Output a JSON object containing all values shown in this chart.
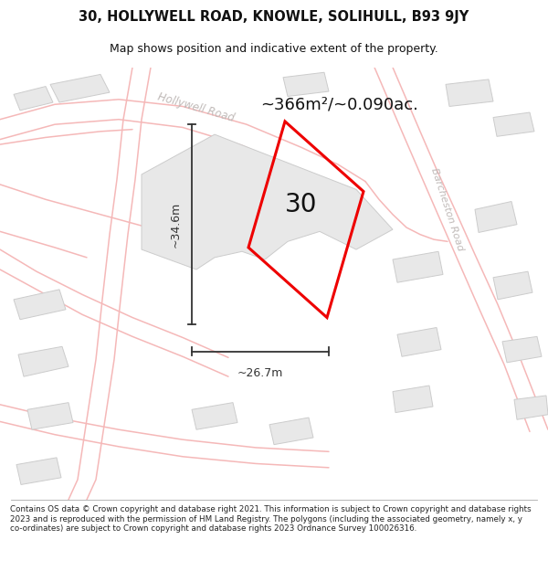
{
  "title": "30, HOLLYWELL ROAD, KNOWLE, SOLIHULL, B93 9JY",
  "subtitle": "Map shows position and indicative extent of the property.",
  "area_label": "~366m²/~0.090ac.",
  "label_30": "30",
  "dim_vertical": "~34.6m",
  "dim_horizontal": "~26.7m",
  "road_hollywell": "Hollywell Road",
  "road_barcheston": "Barcheston Road",
  "legal_text": "Contains OS data © Crown copyright and database right 2021. This information is subject to Crown copyright and database rights 2023 and is reproduced with the permission of HM Land Registry. The polygons (including the associated geometry, namely x, y co-ordinates) are subject to Crown copyright and database rights 2023 Ordnance Survey 100026316.",
  "map_bg": "#ffffff",
  "building_fill": "#e8e8e8",
  "building_edge": "#cccccc",
  "road_line_color": "#f5b8b8",
  "property_color": "#ee0000",
  "dim_color": "#333333",
  "title_color": "#111111",
  "road_text_color": "#c0bab8"
}
